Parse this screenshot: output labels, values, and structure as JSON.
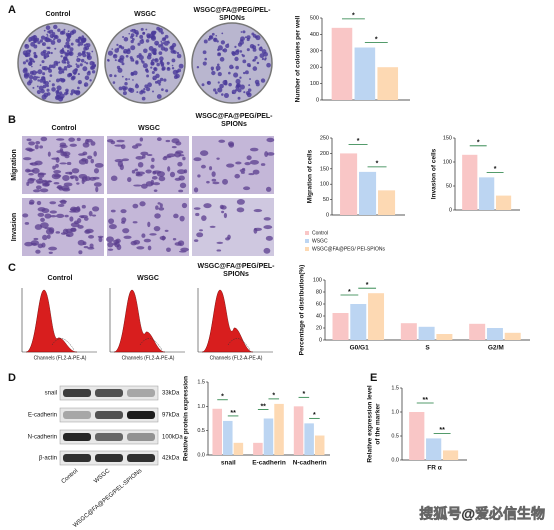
{
  "chart_data": [
    {
      "type": "bar",
      "ylabel": [
        "Number of colonies per well"
      ],
      "categories": [
        null
      ],
      "series": [
        {
          "color": "#f9c6c6",
          "values": [
            440
          ]
        },
        {
          "color": "#bcd5f2",
          "values": [
            320
          ]
        },
        {
          "color": "#fdd9b3",
          "values": [
            200
          ]
        }
      ],
      "ylim": [
        0,
        500
      ],
      "yticks": [
        0,
        100,
        200,
        300,
        400,
        500
      ],
      "annotations": [
        [
          "*",
          "*"
        ]
      ]
    },
    {
      "type": "bar",
      "ylabel": [
        "Migration of cells"
      ],
      "categories": [
        null
      ],
      "series": [
        {
          "color": "#f9c6c6",
          "values": [
            200
          ]
        },
        {
          "color": "#bcd5f2",
          "values": [
            140
          ]
        },
        {
          "color": "#fdd9b3",
          "values": [
            80
          ]
        }
      ],
      "ylim": [
        0,
        250
      ],
      "yticks": [
        0,
        50,
        100,
        150,
        200,
        250
      ],
      "annotations": [
        [
          "*",
          "*"
        ]
      ]
    },
    {
      "type": "bar",
      "ylabel": [
        "Invasion of cells"
      ],
      "categories": [
        null
      ],
      "series": [
        {
          "name": "Control",
          "color": "#f9c6c6",
          "values": [
            115
          ]
        },
        {
          "name": "WSGC",
          "color": "#bcd5f2",
          "values": [
            68
          ]
        },
        {
          "name": "WSGC@FA@PEG/ PEI-SPIONs",
          "color": "#fdd9b3",
          "values": [
            30
          ]
        }
      ],
      "ylim": [
        0,
        150
      ],
      "yticks": [
        0,
        50,
        100,
        150
      ],
      "annotations": [
        [
          "*",
          "*"
        ]
      ],
      "legend": "below"
    },
    {
      "type": "bar",
      "ylabel": [
        "Percentage of distribution(%)"
      ],
      "categories": [
        "G0/G1",
        "S",
        "G2/M"
      ],
      "series": [
        {
          "color": "#f9c6c6",
          "values": [
            45,
            28,
            27
          ]
        },
        {
          "color": "#bcd5f2",
          "values": [
            60,
            22,
            20
          ]
        },
        {
          "color": "#fdd9b3",
          "values": [
            78,
            10,
            12
          ]
        }
      ],
      "ylim": [
        0,
        100
      ],
      "yticks": [
        0,
        20,
        40,
        60,
        80,
        100
      ],
      "annotations": [
        [
          "*",
          "*"
        ],
        [],
        []
      ]
    },
    {
      "type": "bar",
      "ylabel": [
        "Relative protein expression"
      ],
      "categories": [
        "snail",
        "E-cadherin",
        "N-cadherin"
      ],
      "series": [
        {
          "color": "#f9c6c6",
          "values": [
            0.95,
            0.25,
            1.0
          ]
        },
        {
          "color": "#bcd5f2",
          "values": [
            0.7,
            0.75,
            0.65
          ]
        },
        {
          "color": "#fdd9b3",
          "values": [
            0.25,
            1.05,
            0.4
          ]
        }
      ],
      "ylim": [
        0,
        1.5
      ],
      "yticks": [
        {
          "value": 0,
          "label": "0.0"
        },
        {
          "value": 0.5,
          "label": "0.5"
        },
        {
          "value": 1,
          "label": "1.0"
        },
        {
          "value": 1.5,
          "label": "1.5"
        }
      ],
      "annotations": [
        [
          "*",
          "**"
        ],
        [
          "**",
          "*"
        ],
        [
          "*",
          "*"
        ]
      ]
    },
    {
      "type": "bar",
      "ylabel": [
        "Relative expression level",
        "of the marker"
      ],
      "categories": [
        "FR α"
      ],
      "series": [
        {
          "color": "#f9c6c6",
          "values": [
            1.0
          ]
        },
        {
          "color": "#bcd5f2",
          "values": [
            0.45
          ]
        },
        {
          "color": "#fdd9b3",
          "values": [
            0.2
          ]
        }
      ],
      "ylim": [
        0,
        1.5
      ],
      "yticks": [
        {
          "value": 0,
          "label": "0.0"
        },
        {
          "value": 0.5,
          "label": "0.5"
        },
        {
          "value": 1,
          "label": "1.0"
        },
        {
          "value": 1.5,
          "label": "1.5"
        }
      ],
      "annotations": [
        [
          "**",
          "**"
        ]
      ]
    }
  ],
  "figure": {
    "panel_labels": [
      "A",
      "B",
      "C",
      "D",
      "E"
    ],
    "panel_a": {
      "titles": [
        "Control",
        "WSGC",
        [
          "WSGC@FA@PEG/PEL-",
          "SPIONs"
        ]
      ]
    },
    "panel_b": {
      "titles": [
        "Control",
        "WSGC",
        [
          "WSGC@FA@PEG/PEL-",
          "SPIONs"
        ]
      ],
      "rows": [
        "Migration",
        "Invasion"
      ]
    },
    "panel_c": {
      "titles": [
        "Control",
        "WSGC",
        [
          "WSGC@FA@PEG/PEL-",
          "SPIONs"
        ]
      ],
      "xlabel": "Channels (FL2-A-PE-A)"
    },
    "panel_d": {
      "proteins": [
        "snail",
        "E-cadherin",
        "N-cadherin",
        "β-actin"
      ],
      "sizes": [
        "33kDa",
        "97kDa",
        "100kDa",
        "42kDa"
      ],
      "lanes": [
        "Control",
        "WSGC",
        "WSGC@FA@PEG/PEL-SPIONs"
      ]
    },
    "watermark": "搜狐号@爱必信生物"
  }
}
